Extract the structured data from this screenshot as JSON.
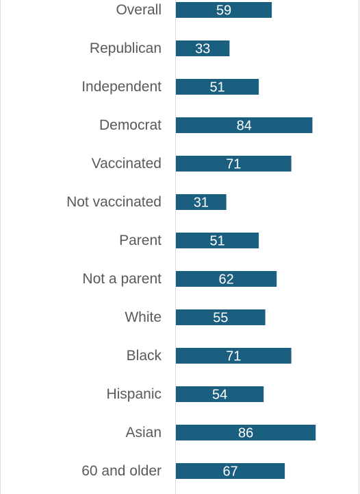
{
  "chart_data": {
    "type": "bar",
    "orientation": "horizontal",
    "title": "",
    "xlabel": "",
    "ylabel": "",
    "categories": [
      "Overall",
      "Republican",
      "Independent",
      "Democrat",
      "Vaccinated",
      "Not vaccinated",
      "Parent",
      "Not a parent",
      "White",
      "Black",
      "Hispanic",
      "Asian",
      "60 and older"
    ],
    "values": [
      59,
      33,
      51,
      84,
      71,
      31,
      51,
      62,
      55,
      71,
      54,
      86,
      67
    ],
    "xlim": [
      0,
      100
    ],
    "grid": false,
    "data_labels": true,
    "bar_color": "#1b5f80",
    "label_color": "#595959",
    "axis_color": "#d9d9d9"
  }
}
